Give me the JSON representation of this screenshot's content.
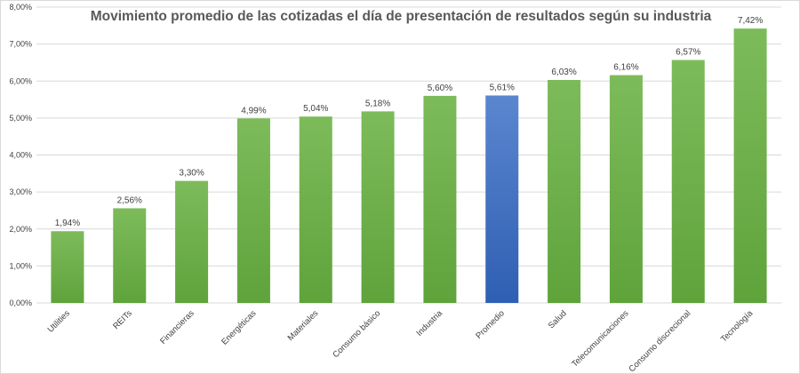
{
  "chart_data": {
    "type": "bar",
    "title": "Movimiento promedio de las cotizadas el día de presentación de resultados según su industria",
    "xlabel": "",
    "ylabel": "",
    "ylim": [
      0,
      8
    ],
    "y_ticks": [
      0,
      1,
      2,
      3,
      4,
      5,
      6,
      7,
      8
    ],
    "y_tick_labels": [
      "0,00%",
      "1,00%",
      "2,00%",
      "3,00%",
      "4,00%",
      "5,00%",
      "6,00%",
      "7,00%",
      "8,00%"
    ],
    "categories": [
      "Utilities",
      "REITs",
      "Financieras",
      "Energéticas",
      "Materiales",
      "Consumo básico",
      "Industria",
      "Promedio",
      "Salud",
      "Telecomunicaciones",
      "Consumo discrecional",
      "Tecnología"
    ],
    "values": [
      1.94,
      2.56,
      3.3,
      4.99,
      5.04,
      5.18,
      5.6,
      5.61,
      6.03,
      6.16,
      6.57,
      7.42
    ],
    "data_labels": [
      "1,94%",
      "2,56%",
      "3,30%",
      "4,99%",
      "5,04%",
      "5,18%",
      "5,60%",
      "5,61%",
      "6,03%",
      "6,16%",
      "6,57%",
      "7,42%"
    ],
    "unit": "%",
    "grid": true,
    "legend": "none",
    "colors": {
      "default_bar": "#70ad47",
      "highlight_bar": "#4472c4",
      "highlight_category": "Promedio"
    }
  }
}
